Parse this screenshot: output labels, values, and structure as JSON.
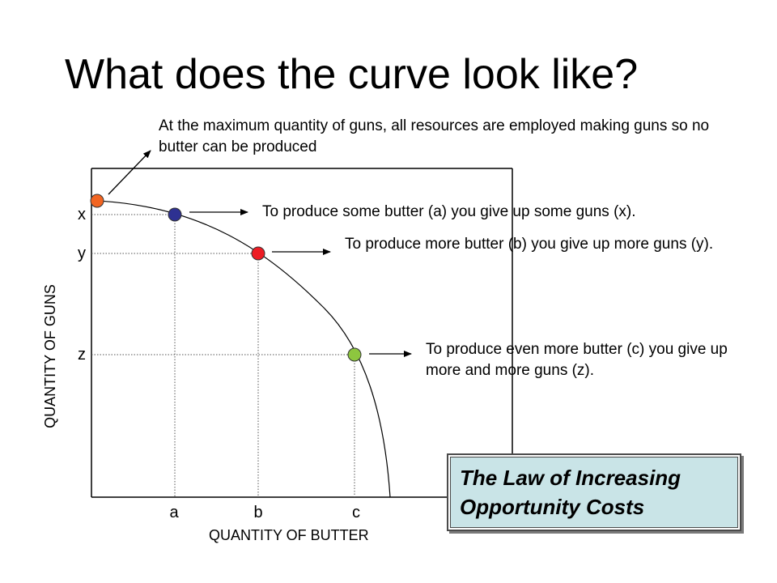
{
  "slide": {
    "title": "What does the curve look like?"
  },
  "axes": {
    "x_label": "QUANTITY OF BUTTER",
    "y_label": "QUANTITY OF GUNS",
    "x_ticks": [
      "a",
      "b",
      "c"
    ],
    "y_ticks": [
      "x",
      "y",
      "z"
    ]
  },
  "annotations": {
    "max_guns": "At the maximum quantity of guns, all resources are employed making guns so no butter can be produced",
    "point_a": "To produce some butter (a) you give up some guns (x).",
    "point_b": "To produce more butter (b) you give up more guns (y).",
    "point_c": "To produce even more butter (c) you give up more and more guns (z)."
  },
  "law_box": {
    "text": "The Law of Increasing Opportunity Costs",
    "background_color": "#c9e4e7"
  },
  "points": [
    {
      "name": "max-guns-point",
      "color": "#f26522"
    },
    {
      "name": "point-a",
      "color": "#2e3192"
    },
    {
      "name": "point-b",
      "color": "#ed1c24"
    },
    {
      "name": "point-c",
      "color": "#8dc63f"
    }
  ]
}
